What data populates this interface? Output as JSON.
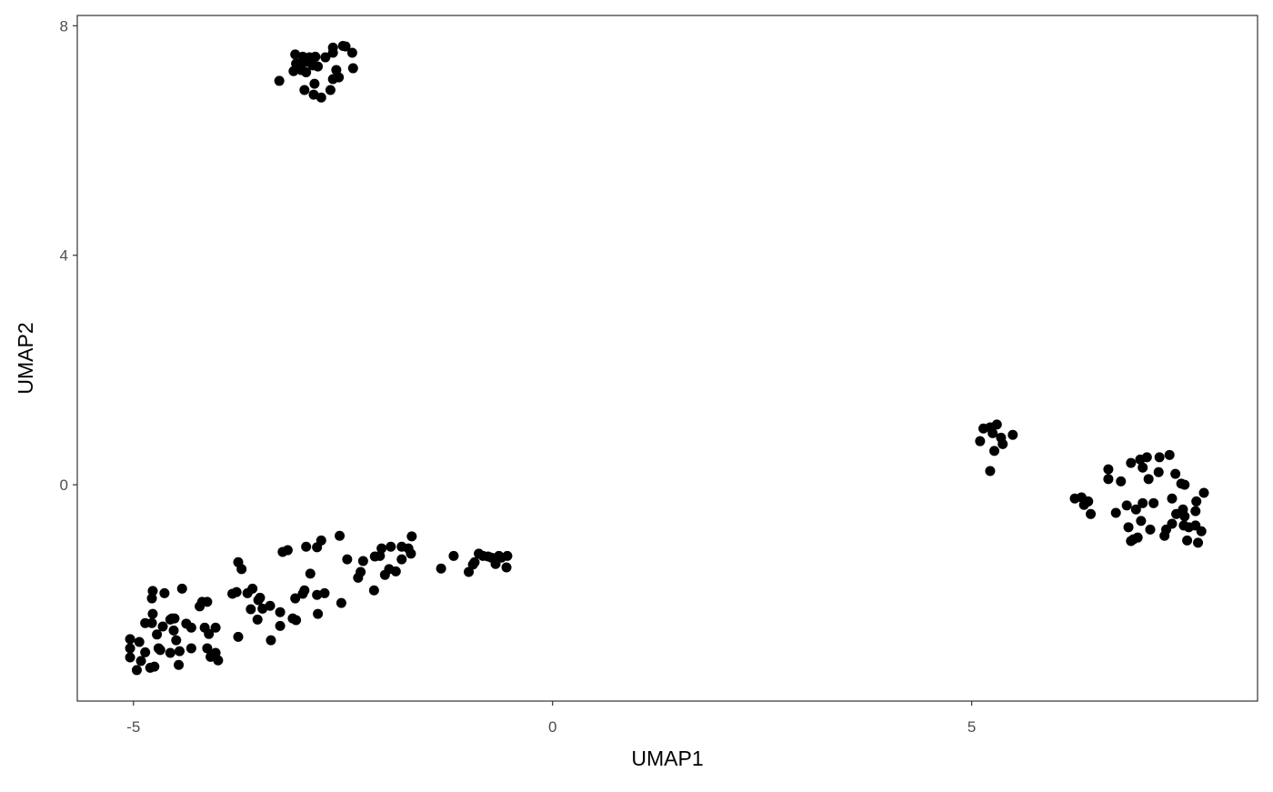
{
  "chart_data": {
    "type": "scatter",
    "title": "",
    "xlabel": "UMAP1",
    "ylabel": "UMAP2",
    "xlim": [
      -5.67,
      8.41
    ],
    "ylim": [
      -3.77,
      8.18
    ],
    "xticks": [
      -5,
      0,
      5
    ],
    "yticks": [
      0,
      4,
      8
    ],
    "xtick_labels": [
      "-5",
      "0",
      "5"
    ],
    "ytick_labels": [
      "0",
      "4",
      "8"
    ],
    "grid": false,
    "theme": "bw-blank",
    "point_color": "#000000",
    "points": [
      [
        -3.07,
        7.5
      ],
      [
        -2.98,
        7.46
      ],
      [
        -2.9,
        7.45
      ],
      [
        -2.83,
        7.46
      ],
      [
        -3.06,
        7.34
      ],
      [
        -2.99,
        7.34
      ],
      [
        -2.93,
        7.37
      ],
      [
        -2.86,
        7.31
      ],
      [
        -3.09,
        7.21
      ],
      [
        -3.0,
        7.23
      ],
      [
        -2.94,
        7.19
      ],
      [
        -2.8,
        7.29
      ],
      [
        -2.71,
        7.45
      ],
      [
        -2.62,
        7.62
      ],
      [
        -2.5,
        7.65
      ],
      [
        -2.47,
        7.64
      ],
      [
        -2.39,
        7.53
      ],
      [
        -2.62,
        7.53
      ],
      [
        -2.58,
        7.23
      ],
      [
        -2.38,
        7.26
      ],
      [
        -2.62,
        7.07
      ],
      [
        -2.55,
        7.1
      ],
      [
        -2.84,
        6.99
      ],
      [
        -3.26,
        7.04
      ],
      [
        -2.96,
        6.88
      ],
      [
        -2.85,
        6.8
      ],
      [
        -2.76,
        6.75
      ],
      [
        -2.65,
        6.88
      ],
      [
        5.14,
        0.98
      ],
      [
        5.22,
        1.0
      ],
      [
        5.3,
        1.05
      ],
      [
        5.25,
        0.9
      ],
      [
        5.35,
        0.82
      ],
      [
        5.37,
        0.71
      ],
      [
        5.49,
        0.87
      ],
      [
        5.1,
        0.76
      ],
      [
        5.27,
        0.59
      ],
      [
        5.22,
        0.24
      ],
      [
        6.63,
        0.27
      ],
      [
        6.63,
        0.1
      ],
      [
        6.78,
        0.06
      ],
      [
        6.9,
        0.38
      ],
      [
        7.01,
        0.44
      ],
      [
        7.09,
        0.48
      ],
      [
        7.04,
        0.3
      ],
      [
        7.24,
        0.48
      ],
      [
        7.36,
        0.52
      ],
      [
        7.23,
        0.22
      ],
      [
        7.11,
        0.1
      ],
      [
        7.43,
        0.19
      ],
      [
        7.5,
        0.02
      ],
      [
        7.54,
        0.0
      ],
      [
        7.77,
        -0.14
      ],
      [
        6.23,
        -0.24
      ],
      [
        6.31,
        -0.22
      ],
      [
        6.34,
        -0.35
      ],
      [
        6.39,
        -0.29
      ],
      [
        6.42,
        -0.51
      ],
      [
        6.72,
        -0.49
      ],
      [
        6.85,
        -0.36
      ],
      [
        6.96,
        -0.43
      ],
      [
        7.04,
        -0.32
      ],
      [
        7.17,
        -0.32
      ],
      [
        7.39,
        -0.24
      ],
      [
        7.52,
        -0.43
      ],
      [
        7.68,
        -0.29
      ],
      [
        7.67,
        -0.46
      ],
      [
        7.54,
        -0.55
      ],
      [
        7.44,
        -0.51
      ],
      [
        6.87,
        -0.74
      ],
      [
        7.02,
        -0.63
      ],
      [
        7.13,
        -0.78
      ],
      [
        7.32,
        -0.78
      ],
      [
        7.39,
        -0.68
      ],
      [
        7.53,
        -0.71
      ],
      [
        7.67,
        -0.71
      ],
      [
        7.74,
        -0.81
      ],
      [
        7.59,
        -0.74
      ],
      [
        6.93,
        -0.95
      ],
      [
        6.98,
        -0.92
      ],
      [
        7.3,
        -0.89
      ],
      [
        7.57,
        -0.97
      ],
      [
        7.7,
        -1.01
      ],
      [
        6.9,
        -0.98
      ],
      [
        -5.04,
        -2.69
      ],
      [
        -5.04,
        -2.85
      ],
      [
        -5.04,
        -3.01
      ],
      [
        -4.96,
        -3.23
      ],
      [
        -4.93,
        -2.74
      ],
      [
        -4.91,
        -3.07
      ],
      [
        -4.86,
        -2.92
      ],
      [
        -4.86,
        -2.41
      ],
      [
        -4.8,
        -3.19
      ],
      [
        -4.78,
        -2.41
      ],
      [
        -4.78,
        -1.98
      ],
      [
        -4.77,
        -1.85
      ],
      [
        -4.77,
        -2.25
      ],
      [
        -4.75,
        -3.17
      ],
      [
        -4.72,
        -2.61
      ],
      [
        -4.7,
        -2.85
      ],
      [
        -4.68,
        -2.88
      ],
      [
        -4.65,
        -2.47
      ],
      [
        -4.63,
        -1.89
      ],
      [
        -4.56,
        -2.35
      ],
      [
        -4.56,
        -2.93
      ],
      [
        -4.54,
        -2.33
      ],
      [
        -4.52,
        -2.54
      ],
      [
        -4.51,
        -2.33
      ],
      [
        -4.49,
        -2.71
      ],
      [
        -4.46,
        -3.14
      ],
      [
        -4.45,
        -2.9
      ],
      [
        -4.42,
        -1.81
      ],
      [
        -4.37,
        -2.42
      ],
      [
        -4.31,
        -2.49
      ],
      [
        -4.31,
        -2.85
      ],
      [
        -4.21,
        -2.12
      ],
      [
        -4.18,
        -2.04
      ],
      [
        -4.12,
        -2.04
      ],
      [
        -4.15,
        -2.49
      ],
      [
        -4.12,
        -2.85
      ],
      [
        -4.1,
        -2.6
      ],
      [
        -4.08,
        -3.0
      ],
      [
        -4.02,
        -2.49
      ],
      [
        -4.02,
        -2.93
      ],
      [
        -3.99,
        -3.06
      ],
      [
        -3.82,
        -1.9
      ],
      [
        -3.77,
        -1.87
      ],
      [
        -3.75,
        -1.35
      ],
      [
        -3.75,
        -2.65
      ],
      [
        -3.71,
        -1.47
      ],
      [
        -3.64,
        -1.89
      ],
      [
        -3.6,
        -2.17
      ],
      [
        -3.58,
        -1.81
      ],
      [
        -3.52,
        -2.35
      ],
      [
        -3.51,
        -2.01
      ],
      [
        -3.46,
        -2.16
      ],
      [
        -3.49,
        -1.97
      ],
      [
        -3.37,
        -2.11
      ],
      [
        -3.36,
        -2.71
      ],
      [
        -3.25,
        -2.22
      ],
      [
        -3.25,
        -2.46
      ],
      [
        -3.22,
        -1.17
      ],
      [
        -3.16,
        -1.14
      ],
      [
        -3.1,
        -2.33
      ],
      [
        -3.06,
        -2.36
      ],
      [
        -3.07,
        -1.98
      ],
      [
        -2.98,
        -1.9
      ],
      [
        -2.96,
        -1.84
      ],
      [
        -2.94,
        -1.08
      ],
      [
        -2.89,
        -1.55
      ],
      [
        -2.81,
        -1.09
      ],
      [
        -2.81,
        -1.92
      ],
      [
        -2.8,
        -2.25
      ],
      [
        -2.76,
        -0.97
      ],
      [
        -2.72,
        -1.89
      ],
      [
        -2.52,
        -2.06
      ],
      [
        -2.54,
        -0.89
      ],
      [
        -2.45,
        -1.3
      ],
      [
        -2.32,
        -1.62
      ],
      [
        -2.29,
        -1.52
      ],
      [
        -2.26,
        -1.33
      ],
      [
        -2.13,
        -1.84
      ],
      [
        -2.12,
        -1.25
      ],
      [
        -2.06,
        -1.24
      ],
      [
        -2.04,
        -1.11
      ],
      [
        -2.0,
        -1.57
      ],
      [
        -1.95,
        -1.47
      ],
      [
        -1.93,
        -1.08
      ],
      [
        -1.87,
        -1.51
      ],
      [
        -1.8,
        -1.3
      ],
      [
        -1.8,
        -1.08
      ],
      [
        -1.72,
        -1.11
      ],
      [
        -1.69,
        -1.2
      ],
      [
        -1.68,
        -0.9
      ],
      [
        -1.33,
        -1.46
      ],
      [
        -1.18,
        -1.24
      ],
      [
        -1.0,
        -1.52
      ],
      [
        -0.95,
        -1.39
      ],
      [
        -0.93,
        -1.35
      ],
      [
        -0.88,
        -1.2
      ],
      [
        -0.83,
        -1.24
      ],
      [
        -0.77,
        -1.25
      ],
      [
        -0.73,
        -1.27
      ],
      [
        -0.68,
        -1.38
      ],
      [
        -0.64,
        -1.24
      ],
      [
        -0.61,
        -1.27
      ],
      [
        -0.55,
        -1.44
      ],
      [
        -0.54,
        -1.24
      ]
    ]
  }
}
